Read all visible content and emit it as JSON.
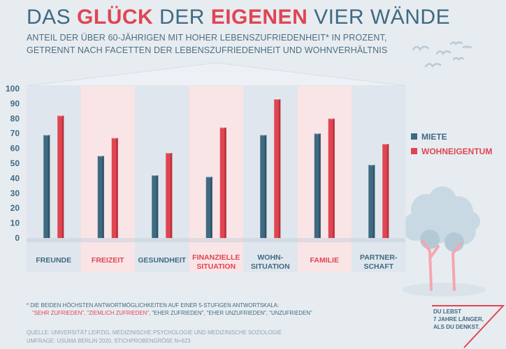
{
  "header": {
    "title_part1": "DAS ",
    "title_part2": "GLÜCK",
    "title_part3": " DER ",
    "title_part4": "EIGENEN",
    "title_part5": " VIER WÄNDE",
    "subtitle_line1": "ANTEIL DER ÜBER 60-JÄHRIGEN MIT HOHER LEBENSZUFRIEDENHEIT* IN PROZENT,",
    "subtitle_line2": "GETRENNT NACH FACETTEN DER LEBENSZUFRIEDENHEIT UND WOHNVERHÄLTNIS"
  },
  "chart_data": {
    "type": "bar",
    "categories": [
      "FREUNDE",
      "FREIZEIT",
      "GESUNDHEIT",
      "FINANZIELLE SITUATION",
      "WOHN- SITUATION",
      "FAMILIE",
      "PARTNER- SCHAFT"
    ],
    "category_lines": [
      [
        "FREUNDE"
      ],
      [
        "FREIZEIT"
      ],
      [
        "GESUNDHEIT"
      ],
      [
        "FINANZIELLE",
        "SITUATION"
      ],
      [
        "WOHN-",
        "SITUATION"
      ],
      [
        "FAMILIE"
      ],
      [
        "PARTNER-",
        "SCHAFT"
      ]
    ],
    "category_colors": [
      "#3f6a82",
      "#e04552",
      "#3f6a82",
      "#e04552",
      "#3f6a82",
      "#e04552",
      "#3f6a82"
    ],
    "band_colors": [
      "#dfe6ed",
      "#f9e4e6",
      "#dfe6ed",
      "#f9e4e6",
      "#dfe6ed",
      "#f9e4e6",
      "#dfe6ed"
    ],
    "series": [
      {
        "name": "MIETE",
        "color": "#3f6a82",
        "values": [
          69,
          55,
          42,
          41,
          69,
          70,
          49
        ]
      },
      {
        "name": "WOHNEIGENTUM",
        "color": "#e04552",
        "values": [
          82,
          67,
          57,
          74,
          93,
          80,
          63
        ]
      }
    ],
    "yticks": [
      0,
      10,
      20,
      30,
      40,
      50,
      60,
      70,
      80,
      90,
      100
    ],
    "ylim": [
      0,
      100
    ],
    "legend_position": "right"
  },
  "footnote": {
    "line1": "* DIE BEIDEN HÖCHSTEN ANTWORTMÖGLICHKEITEN AUF EINER 5-STUFIGEN ANTWORTSKALA:",
    "line2_red": "\"SEHR ZUFRIEDEN\", \"ZIEMLICH ZUFRIEDEN\",",
    "line2_blue": " \"EHER ZUFRIEDEN\", \"EHER UNZUFRIEDEN\", \"UNZUFRIEDEN\"",
    "source1": "QUELLE: UNIVERSITÄT LEIPZIG, MEDIZINISCHE PSYCHOLOGIE UND MEDIZINISCHE SOZIOLOGIE",
    "source2": "UMFRAGE: USUMA BERLIN 2020, STICHPROBENGRÖßE N=623"
  },
  "badge": {
    "line1": "DU LEBST",
    "line2": "7 JAHRE LÄNGER,",
    "line3": "ALS DU DENKST."
  }
}
